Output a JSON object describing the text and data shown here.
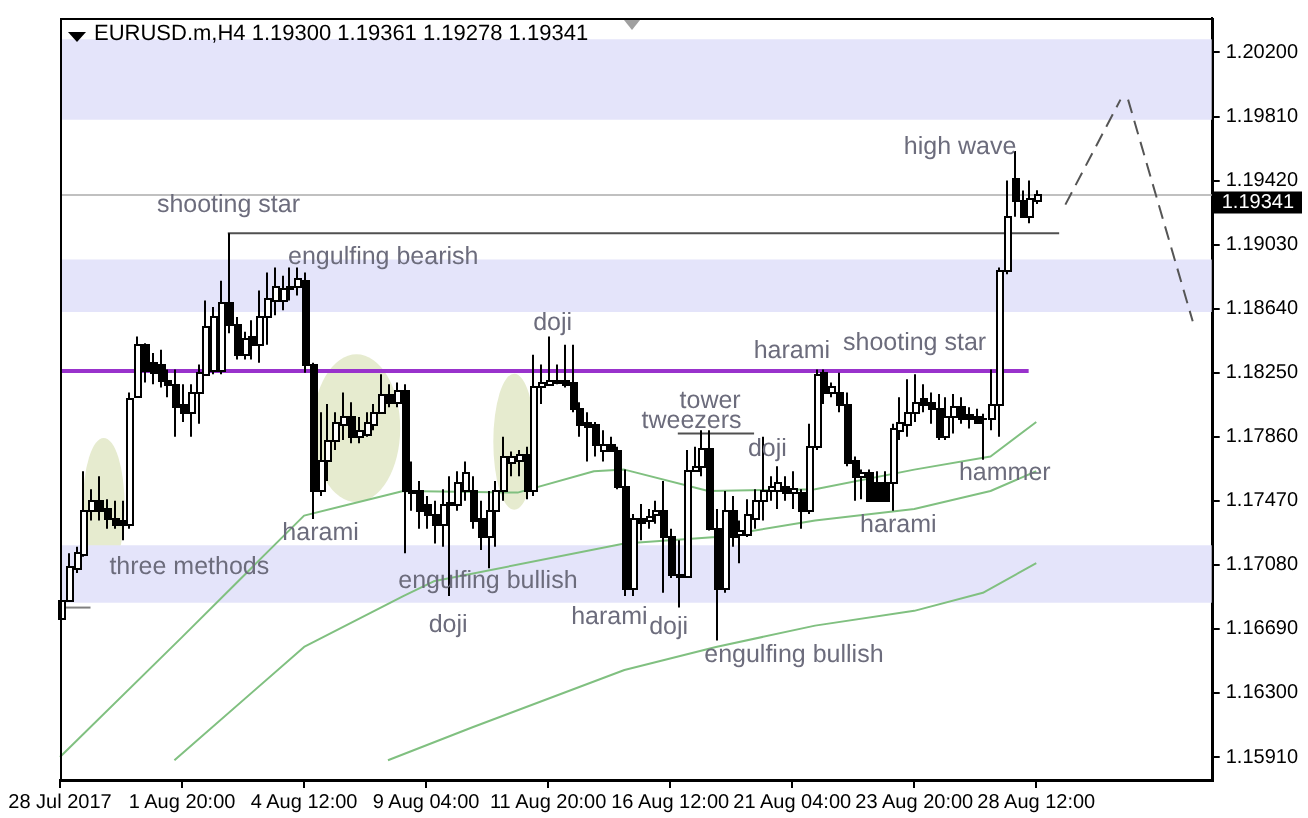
{
  "chart_data": {
    "type": "candlestick",
    "title": "EURUSD.m,H4  1.19300 1.19361 1.19278 1.19341",
    "categories": [
      "28 Jul 2017",
      null,
      null,
      null,
      null,
      null,
      null,
      null,
      null,
      null,
      null,
      null,
      null,
      null,
      null,
      null,
      "1 Aug 20:00",
      null,
      null,
      null,
      null,
      null,
      null,
      null,
      null,
      null,
      null,
      null,
      null,
      null,
      null,
      null,
      "4 Aug 12:00",
      null,
      null,
      null,
      null,
      null,
      null,
      null,
      null,
      null,
      null,
      null,
      null,
      null,
      null,
      null,
      "9 Aug 04:00",
      null,
      null,
      null,
      null,
      null,
      null,
      null,
      null,
      null,
      null,
      null,
      null,
      null,
      null,
      null,
      "11 Aug 20:00",
      null,
      null,
      null,
      null,
      null,
      null,
      null,
      null,
      null,
      null,
      null,
      null,
      null,
      null,
      null,
      "16 Aug 12:00",
      null,
      null,
      null,
      null,
      null,
      null,
      null,
      null,
      null,
      null,
      null,
      null,
      null,
      null,
      null,
      "21 Aug 04:00",
      null,
      null,
      null,
      null,
      null,
      null,
      null,
      null,
      null,
      null,
      null,
      null,
      null,
      null,
      null,
      "23 Aug 20:00",
      null,
      null,
      null,
      null,
      null,
      null,
      null,
      null,
      null,
      null,
      null,
      null,
      null,
      null,
      null,
      "28 Aug 12:00",
      null,
      null,
      null,
      null,
      null,
      null,
      null,
      null,
      null,
      null,
      null,
      null,
      null,
      null,
      null,
      null,
      null,
      null,
      null,
      null,
      null,
      null,
      null
    ],
    "ohlc": [
      [
        1.1676,
        1.1694,
        1.1671,
        1.1686
      ],
      [
        1.1686,
        1.1715,
        1.1686,
        1.1707
      ],
      [
        1.1706,
        1.1719,
        1.1703,
        1.1716
      ],
      [
        1.1715,
        1.1765,
        1.1713,
        1.1741
      ],
      [
        1.1741,
        1.1754,
        1.1735,
        1.1748
      ],
      [
        1.1748,
        1.1762,
        1.1735,
        1.1742
      ],
      [
        1.1743,
        1.1748,
        1.173,
        1.1736
      ],
      [
        1.1736,
        1.1747,
        1.173,
        1.1733
      ],
      [
        1.1735,
        1.1747,
        1.1723,
        1.1733
      ],
      [
        1.1733,
        1.1813,
        1.173,
        1.181
      ],
      [
        1.1811,
        1.1847,
        1.181,
        1.1842
      ],
      [
        1.1842,
        1.1843,
        1.1819,
        1.1827
      ],
      [
        1.1831,
        1.1837,
        1.1818,
        1.1826
      ],
      [
        1.183,
        1.1839,
        1.1816,
        1.1821
      ],
      [
        1.1821,
        1.1827,
        1.181,
        1.1818
      ],
      [
        1.1818,
        1.1827,
        1.1786,
        1.1805
      ],
      [
        1.1806,
        1.1818,
        1.1795,
        1.1801
      ],
      [
        1.1801,
        1.1818,
        1.1786,
        1.1813
      ],
      [
        1.1813,
        1.183,
        1.1794,
        1.1825
      ],
      [
        1.1824,
        1.1869,
        1.1824,
        1.1853
      ],
      [
        1.1827,
        1.1865,
        1.1824,
        1.186
      ],
      [
        1.1827,
        1.1881,
        1.1824,
        1.1868
      ],
      [
        1.1868,
        1.191,
        1.1849,
        1.1855
      ],
      [
        1.1855,
        1.1859,
        1.1833,
        1.1836
      ],
      [
        1.1836,
        1.185,
        1.1833,
        1.1846
      ],
      [
        1.1847,
        1.1857,
        1.1833,
        1.1843
      ],
      [
        1.1843,
        1.1875,
        1.1831,
        1.1859
      ],
      [
        1.1859,
        1.1886,
        1.1842,
        1.1871
      ],
      [
        1.1869,
        1.1889,
        1.186,
        1.1878
      ],
      [
        1.1869,
        1.1884,
        1.1863,
        1.1877
      ],
      [
        1.1877,
        1.1889,
        1.1869,
        1.1878
      ],
      [
        1.1878,
        1.1889,
        1.1872,
        1.1883
      ],
      [
        1.1882,
        1.1886,
        1.1825,
        1.183
      ],
      [
        1.183,
        1.1831,
        1.1736,
        1.1753
      ],
      [
        1.1753,
        1.1801,
        1.175,
        1.1772
      ],
      [
        1.1772,
        1.1806,
        1.1759,
        1.1784
      ],
      [
        1.1784,
        1.1801,
        1.1778,
        1.1795
      ],
      [
        1.1794,
        1.1813,
        1.1784,
        1.1799
      ],
      [
        1.1799,
        1.1807,
        1.1782,
        1.1786
      ],
      [
        1.1786,
        1.1798,
        1.1782,
        1.179
      ],
      [
        1.1788,
        1.1801,
        1.1786,
        1.1795
      ],
      [
        1.1794,
        1.1806,
        1.179,
        1.1801
      ],
      [
        1.1801,
        1.1824,
        1.18,
        1.1812
      ],
      [
        1.1812,
        1.1818,
        1.1804,
        1.1807
      ],
      [
        1.1807,
        1.1819,
        1.1804,
        1.1814
      ],
      [
        1.1814,
        1.1818,
        1.1715,
        1.1753
      ],
      [
        1.1753,
        1.1771,
        1.1741,
        1.1752
      ],
      [
        1.1753,
        1.1759,
        1.173,
        1.1741
      ],
      [
        1.1745,
        1.175,
        1.173,
        1.1739
      ],
      [
        1.1739,
        1.1747,
        1.1721,
        1.1733
      ],
      [
        1.1733,
        1.1754,
        1.1719,
        1.1745
      ],
      [
        1.1746,
        1.1762,
        1.1689,
        1.1745
      ],
      [
        1.1745,
        1.1765,
        1.1741,
        1.1759
      ],
      [
        1.1753,
        1.1771,
        1.1747,
        1.1765
      ],
      [
        1.1753,
        1.1762,
        1.173,
        1.1735
      ],
      [
        1.1736,
        1.1747,
        1.1717,
        1.1725
      ],
      [
        1.1725,
        1.1753,
        1.1706,
        1.1742
      ],
      [
        1.1742,
        1.1759,
        1.1719,
        1.1753
      ],
      [
        1.1753,
        1.1786,
        1.1747,
        1.1774
      ],
      [
        1.1771,
        1.1777,
        1.1762,
        1.1774
      ],
      [
        1.1772,
        1.1778,
        1.1762,
        1.1775
      ],
      [
        1.1775,
        1.178,
        1.1748,
        1.1754
      ],
      [
        1.1754,
        1.1836,
        1.175,
        1.1817
      ],
      [
        1.1817,
        1.183,
        1.1806,
        1.1819
      ],
      [
        1.1818,
        1.1847,
        1.1818,
        1.182
      ],
      [
        1.1819,
        1.183,
        1.1818,
        1.182
      ],
      [
        1.182,
        1.1842,
        1.1816,
        1.1818
      ],
      [
        1.1819,
        1.1842,
        1.1801,
        1.1804
      ],
      [
        1.1804,
        1.1807,
        1.1786,
        1.1794
      ],
      [
        1.1795,
        1.1801,
        1.1771,
        1.1792
      ],
      [
        1.1794,
        1.1795,
        1.1774,
        1.1782
      ],
      [
        1.1778,
        1.179,
        1.1771,
        1.1781
      ],
      [
        1.1781,
        1.1786,
        1.1777,
        1.1778
      ],
      [
        1.1778,
        1.178,
        1.1754,
        1.1756
      ],
      [
        1.1756,
        1.1766,
        1.1689,
        1.1694
      ],
      [
        1.1694,
        1.1739,
        1.1689,
        1.1736
      ],
      [
        1.1736,
        1.1745,
        1.1723,
        1.1734
      ],
      [
        1.1735,
        1.1742,
        1.173,
        1.1738
      ],
      [
        1.1739,
        1.1747,
        1.1733,
        1.1742
      ],
      [
        1.1742,
        1.1759,
        1.1691,
        1.1725
      ],
      [
        1.1725,
        1.173,
        1.17,
        1.1703
      ],
      [
        1.1703,
        1.1723,
        1.1682,
        1.1701
      ],
      [
        1.1701,
        1.1778,
        1.17,
        1.1766
      ],
      [
        1.1766,
        1.178,
        1.1765,
        1.1768
      ],
      [
        1.1768,
        1.179,
        1.1762,
        1.1779
      ],
      [
        1.1779,
        1.179,
        1.1729,
        1.173
      ],
      [
        1.173,
        1.1742,
        1.1662,
        1.1694
      ],
      [
        1.1694,
        1.1753,
        1.1691,
        1.1741
      ],
      [
        1.1741,
        1.175,
        1.1719,
        1.1725
      ],
      [
        1.1727,
        1.1735,
        1.1709,
        1.1729
      ],
      [
        1.1727,
        1.1748,
        1.1725,
        1.1739
      ],
      [
        1.1736,
        1.1754,
        1.173,
        1.1748
      ],
      [
        1.1748,
        1.1786,
        1.1735,
        1.1754
      ],
      [
        1.1753,
        1.1762,
        1.1747,
        1.1756
      ],
      [
        1.1753,
        1.1768,
        1.1742,
        1.1759
      ],
      [
        1.1756,
        1.1762,
        1.1747,
        1.1752
      ],
      [
        1.1752,
        1.1765,
        1.1742,
        1.1755
      ],
      [
        1.1752,
        1.1754,
        1.173,
        1.1741
      ],
      [
        1.1741,
        1.1794,
        1.1739,
        1.178
      ],
      [
        1.178,
        1.1827,
        1.1778,
        1.1824
      ],
      [
        1.1825,
        1.1827,
        1.1806,
        1.1813
      ],
      [
        1.1813,
        1.1819,
        1.181,
        1.1817
      ],
      [
        1.1813,
        1.1825,
        1.1801,
        1.1806
      ],
      [
        1.1806,
        1.1813,
        1.1768,
        1.1771
      ],
      [
        1.1772,
        1.1774,
        1.1747,
        1.1762
      ],
      [
        1.1762,
        1.1766,
        1.1748,
        1.1765
      ],
      [
        1.1765,
        1.1766,
        1.1747,
        1.1748
      ],
      [
        1.1759,
        1.1765,
        1.1747,
        1.1748
      ],
      [
        1.1759,
        1.1765,
        1.1747,
        1.1748
      ],
      [
        1.1759,
        1.1794,
        1.1741,
        1.1791
      ],
      [
        1.179,
        1.181,
        1.1784,
        1.1795
      ],
      [
        1.1794,
        1.1821,
        1.1786,
        1.1801
      ],
      [
        1.1801,
        1.1824,
        1.1795,
        1.1807
      ],
      [
        1.181,
        1.1818,
        1.1801,
        1.1806
      ],
      [
        1.1807,
        1.1813,
        1.1794,
        1.1803
      ],
      [
        1.1803,
        1.1812,
        1.1784,
        1.1786
      ],
      [
        1.1786,
        1.181,
        1.1784,
        1.1799
      ],
      [
        1.1799,
        1.1812,
        1.1788,
        1.1805
      ],
      [
        1.1805,
        1.181,
        1.1794,
        1.1798
      ],
      [
        1.18,
        1.1804,
        1.1791,
        1.1797
      ],
      [
        1.1799,
        1.1803,
        1.1794,
        1.1795
      ],
      [
        1.1798,
        1.18,
        1.1772,
        1.1797
      ],
      [
        1.1797,
        1.1827,
        1.179,
        1.1806
      ],
      [
        1.1806,
        1.1889,
        1.1786,
        1.1888
      ],
      [
        1.1888,
        1.1942,
        1.1885,
        1.192
      ],
      [
        1.1943,
        1.196,
        1.192,
        1.193
      ],
      [
        1.193,
        1.1936,
        1.192,
        1.1921
      ],
      [
        1.1921,
        1.1942,
        1.1916,
        1.1931
      ],
      [
        1.193,
        1.19361,
        1.19278,
        1.19341
      ],
      null,
      null,
      null,
      null,
      null,
      null,
      null,
      null,
      null,
      null,
      null,
      null,
      null,
      null,
      null,
      null,
      null,
      null,
      null,
      null,
      null,
      null,
      null
    ],
    "series": [
      {
        "type": "line",
        "color": "#80c080",
        "values": [
          1.1591,
          null,
          null,
          null,
          null,
          null,
          null,
          null,
          null,
          null,
          null,
          null,
          null,
          null,
          null,
          null,
          1.1664,
          null,
          null,
          null,
          null,
          null,
          null,
          null,
          null,
          null,
          null,
          null,
          null,
          null,
          null,
          null,
          1.1738,
          null,
          null,
          null,
          null,
          null,
          null,
          null,
          null,
          null,
          null,
          null,
          null,
          1.1753,
          null,
          null,
          null,
          null,
          null,
          null,
          null,
          null,
          null,
          null,
          null,
          null,
          null,
          null,
          1.1752,
          null,
          null,
          null,
          null,
          null,
          null,
          null,
          null,
          null,
          1.1765,
          null,
          null,
          null,
          1.1766,
          null,
          null,
          null,
          null,
          null,
          null,
          null,
          null,
          null,
          null,
          1.1753,
          null,
          null,
          null,
          null,
          null,
          null,
          null,
          null,
          null,
          null,
          null,
          null,
          null,
          1.1754,
          null,
          null,
          null,
          null,
          null,
          null,
          null,
          null,
          null,
          null,
          null,
          null,
          1.1766,
          null,
          null,
          null,
          null,
          null,
          null,
          null,
          null,
          null,
          1.1774,
          null,
          null,
          null,
          null,
          null,
          1.1795,
          null,
          null,
          null,
          null,
          null,
          null,
          null,
          null,
          null,
          null,
          null,
          null,
          null,
          null,
          null,
          null,
          null,
          null,
          null,
          null,
          null,
          null,
          null
        ]
      },
      {
        "type": "line",
        "color": "#80c080",
        "values": [
          null,
          null,
          null,
          null,
          null,
          null,
          null,
          null,
          null,
          null,
          null,
          null,
          null,
          null,
          null,
          1.1589,
          null,
          null,
          null,
          null,
          null,
          null,
          null,
          null,
          null,
          null,
          null,
          null,
          null,
          null,
          null,
          null,
          1.1658,
          null,
          null,
          null,
          null,
          null,
          null,
          null,
          null,
          null,
          null,
          null,
          null,
          1.1689,
          null,
          null,
          null,
          1.1698,
          null,
          null,
          null,
          null,
          null,
          null,
          null,
          null,
          null,
          null,
          null,
          null,
          null,
          null,
          null,
          null,
          null,
          null,
          null,
          null,
          null,
          null,
          null,
          null,
          1.1721,
          null,
          null,
          null,
          null,
          null,
          null,
          null,
          null,
          null,
          null,
          null,
          1.1725,
          null,
          null,
          null,
          null,
          null,
          null,
          null,
          null,
          null,
          null,
          null,
          null,
          1.1735,
          null,
          null,
          null,
          null,
          null,
          null,
          null,
          null,
          null,
          null,
          null,
          null,
          1.1742,
          null,
          null,
          null,
          null,
          null,
          null,
          null,
          null,
          null,
          1.1753,
          null,
          null,
          null,
          null,
          null,
          1.1765,
          null,
          null,
          null,
          null,
          null,
          null,
          null,
          null,
          null,
          null,
          null,
          null,
          null,
          null,
          null,
          null,
          null,
          null,
          null,
          null,
          null,
          null,
          null
        ]
      },
      {
        "type": "line",
        "color": "#80c080",
        "values": [
          null,
          null,
          null,
          null,
          null,
          null,
          null,
          null,
          null,
          null,
          null,
          null,
          null,
          null,
          null,
          null,
          null,
          null,
          null,
          null,
          null,
          null,
          null,
          null,
          null,
          null,
          null,
          null,
          null,
          null,
          null,
          null,
          null,
          null,
          null,
          null,
          null,
          null,
          null,
          null,
          null,
          null,
          null,
          1.1589,
          null,
          null,
          null,
          null,
          null,
          null,
          null,
          null,
          null,
          null,
          1.1609,
          null,
          null,
          null,
          null,
          null,
          null,
          null,
          null,
          null,
          null,
          null,
          null,
          null,
          null,
          null,
          null,
          null,
          null,
          null,
          1.1644,
          null,
          null,
          null,
          null,
          null,
          null,
          null,
          null,
          null,
          null,
          null,
          1.1658,
          null,
          null,
          null,
          null,
          null,
          null,
          null,
          null,
          null,
          null,
          null,
          null,
          1.1671,
          null,
          null,
          null,
          null,
          null,
          null,
          null,
          null,
          null,
          null,
          null,
          null,
          1.168,
          null,
          null,
          null,
          null,
          null,
          null,
          null,
          null,
          1.1691,
          null,
          null,
          null,
          null,
          null,
          null,
          1.1709,
          null,
          null,
          null,
          null,
          null,
          null,
          null,
          null,
          null,
          null,
          null,
          null,
          null,
          null,
          null,
          null,
          null,
          null,
          null,
          null,
          null,
          null,
          null
        ]
      },
      {
        "type": "line",
        "color": "#9932cc",
        "values": [
          1.1826,
          null,
          null,
          null,
          null,
          null,
          null,
          null,
          null,
          null,
          null,
          null,
          null,
          null,
          null,
          null,
          null,
          null,
          null,
          null,
          null,
          null,
          null,
          null,
          null,
          null,
          null,
          null,
          null,
          null,
          null,
          null,
          null,
          null,
          null,
          null,
          null,
          null,
          null,
          null,
          null,
          null,
          null,
          null,
          null,
          null,
          null,
          null,
          null,
          null,
          null,
          null,
          null,
          null,
          null,
          null,
          null,
          null,
          null,
          null,
          null,
          null,
          null,
          null,
          null,
          null,
          null,
          null,
          null,
          null,
          null,
          null,
          null,
          null,
          null,
          null,
          null,
          null,
          null,
          null,
          null,
          null,
          null,
          null,
          null,
          null,
          null,
          null,
          null,
          null,
          null,
          null,
          null,
          null,
          null,
          null,
          null,
          null,
          null,
          null,
          null,
          null,
          null,
          null,
          null,
          null,
          null,
          null,
          null,
          null,
          null,
          null,
          null,
          null,
          null,
          null,
          null,
          null,
          null,
          null,
          null,
          null,
          null,
          null,
          null,
          null,
          null,
          1.1826,
          null,
          null,
          null,
          null,
          null,
          null,
          null,
          null,
          null,
          null,
          null,
          null,
          null,
          null,
          null,
          null,
          null,
          null,
          null,
          null,
          null,
          null,
          null,
          null
        ]
      },
      {
        "type": "line",
        "color": "#505050",
        "values": [
          null,
          null,
          null,
          null,
          null,
          null,
          null,
          null,
          null,
          null,
          null,
          null,
          null,
          null,
          null,
          null,
          null,
          null,
          null,
          null,
          null,
          null,
          1.191,
          null,
          null,
          null,
          null,
          null,
          null,
          null,
          null,
          null,
          null,
          null,
          null,
          null,
          null,
          null,
          null,
          null,
          null,
          null,
          null,
          null,
          null,
          null,
          null,
          null,
          null,
          null,
          null,
          null,
          null,
          null,
          null,
          null,
          null,
          null,
          null,
          null,
          null,
          null,
          null,
          null,
          null,
          null,
          null,
          null,
          null,
          null,
          null,
          null,
          null,
          null,
          null,
          null,
          null,
          null,
          null,
          null,
          null,
          null,
          null,
          null,
          null,
          null,
          null,
          null,
          null,
          null,
          null,
          null,
          null,
          null,
          null,
          null,
          null,
          null,
          null,
          null,
          null,
          null,
          null,
          null,
          null,
          null,
          null,
          null,
          null,
          null,
          null,
          null,
          null,
          null,
          null,
          null,
          null,
          null,
          null,
          null,
          null,
          null,
          null,
          null,
          null,
          null,
          null,
          null,
          null,
          null,
          null,
          1.191,
          null,
          null,
          null,
          null,
          null,
          null,
          null,
          null,
          null,
          null,
          null,
          null,
          null,
          null,
          null,
          null,
          null,
          null,
          null,
          null
        ]
      },
      {
        "type": "line",
        "color": "#505050",
        "values": [
          null,
          null,
          null,
          null,
          null,
          null,
          null,
          null,
          null,
          null,
          null,
          null,
          null,
          null,
          null,
          null,
          null,
          null,
          null,
          null,
          null,
          null,
          null,
          null,
          null,
          null,
          null,
          null,
          null,
          null,
          null,
          null,
          null,
          null,
          null,
          null,
          null,
          null,
          null,
          null,
          null,
          null,
          null,
          null,
          null,
          null,
          null,
          null,
          null,
          null,
          null,
          null,
          null,
          null,
          null,
          null,
          null,
          null,
          null,
          null,
          null,
          null,
          null,
          null,
          null,
          null,
          null,
          null,
          null,
          null,
          null,
          null,
          null,
          null,
          null,
          null,
          null,
          null,
          null,
          null,
          null,
          1.1788,
          null,
          null,
          null,
          null,
          null,
          null,
          null,
          null,
          null,
          1.1788,
          null,
          null,
          null,
          null,
          null,
          null,
          null,
          null,
          null,
          null,
          null,
          null,
          null,
          null,
          null,
          null,
          null,
          null,
          null,
          null,
          null,
          null,
          null,
          null,
          null,
          null,
          null,
          null,
          null,
          null,
          null,
          null,
          null,
          null,
          null,
          null,
          null,
          null,
          null,
          null,
          null,
          null,
          null,
          null,
          null,
          null,
          null,
          null,
          null,
          null,
          null,
          null,
          null,
          null,
          null,
          null,
          null,
          null,
          null,
          null
        ]
      },
      {
        "type": "line",
        "color": "#808080",
        "values": [
          1.1682,
          null,
          null,
          null,
          1.1682,
          null,
          null,
          null,
          null,
          null,
          null,
          null,
          null,
          null,
          null,
          null,
          null,
          null,
          null,
          null,
          null,
          null,
          null,
          null,
          null,
          null,
          null,
          null,
          null,
          null,
          null,
          null,
          null,
          null,
          null,
          null,
          null,
          null,
          null,
          null,
          null,
          null,
          null,
          null,
          null,
          null,
          null,
          null,
          null,
          null,
          null,
          null,
          null,
          null,
          null,
          null,
          null,
          null,
          null,
          null,
          null,
          null,
          null,
          null,
          null,
          null,
          null,
          null,
          null,
          null,
          null,
          null,
          null,
          null,
          null,
          null,
          null,
          null,
          null,
          null,
          null,
          null,
          null,
          null,
          null,
          null,
          null,
          null,
          null,
          null,
          null,
          null,
          null,
          null,
          null,
          null,
          null,
          null,
          null,
          null,
          null,
          null,
          null,
          null,
          null,
          null,
          null,
          null,
          null,
          null,
          null,
          null,
          null,
          null,
          null,
          null,
          null,
          null,
          null,
          null,
          null,
          null,
          null,
          null,
          null,
          null,
          null,
          null,
          null,
          null,
          null,
          null,
          null,
          null,
          null,
          null,
          null,
          null,
          null,
          null,
          null,
          null,
          null,
          null,
          null,
          null,
          null,
          null,
          null,
          null,
          null,
          null
        ]
      }
    ],
    "ylim": [
      1.1577,
      1.2041
    ],
    "yticks": [
      {
        "value": 1.1591,
        "label": "1.15910"
      },
      {
        "value": 1.163,
        "label": "1.16300"
      },
      {
        "value": 1.1669,
        "label": "1.16690"
      },
      {
        "value": 1.1708,
        "label": "1.17080"
      },
      {
        "value": 1.1747,
        "label": "1.17470"
      },
      {
        "value": 1.1786,
        "label": "1.17860"
      },
      {
        "value": 1.1825,
        "label": "1.18250"
      },
      {
        "value": 1.1864,
        "label": "1.18640"
      },
      {
        "value": 1.1903,
        "label": "1.19030"
      },
      {
        "value": 1.1942,
        "label": "1.19420"
      },
      {
        "value": 1.1981,
        "label": "1.19810"
      },
      {
        "value": 1.202,
        "label": "1.20200"
      }
    ],
    "ref_lines": [
      {
        "axis": "y",
        "value": 1.19341,
        "label": "1.19341",
        "color": "#c0c0c0"
      }
    ],
    "bands": [
      {
        "axis": "y",
        "from": 1.1979,
        "to": 1.2028,
        "color": "#e4e4fa"
      },
      {
        "axis": "y",
        "from": 1.1862,
        "to": 1.1894,
        "color": "#e4e4fa"
      },
      {
        "axis": "y",
        "from": 1.1685,
        "to": 1.172,
        "color": "#e4e4fa"
      }
    ],
    "annotations": [
      "shooting star",
      "engulfing bearish",
      "three methods",
      "harami",
      "engulfing bullish",
      "doji",
      "doji",
      "harami",
      "doji",
      "tower",
      "tweezers",
      "doji",
      "engulfing bullish",
      "harami",
      "shooting star",
      "harami",
      "hammer",
      "high wave"
    ]
  }
}
